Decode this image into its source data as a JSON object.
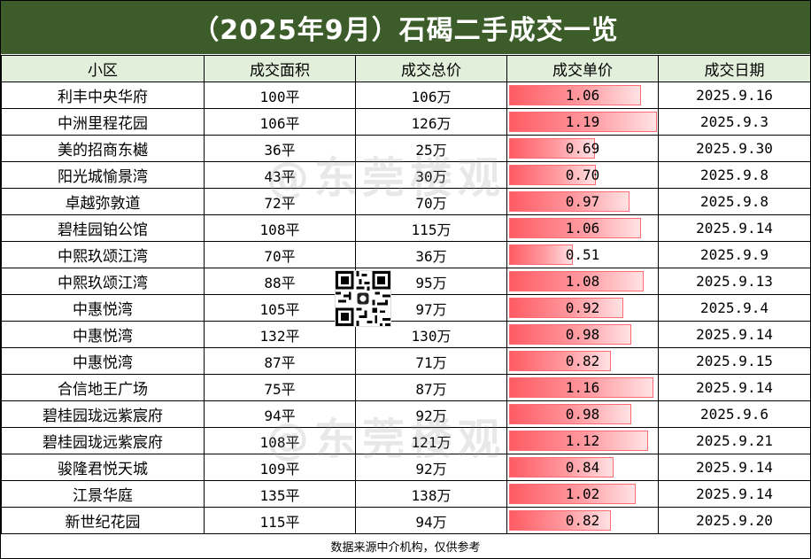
{
  "title": "（2025年9月）石碣二手成交一览",
  "columns": [
    "小区",
    "成交面积",
    "成交总价",
    "成交单价",
    "成交日期"
  ],
  "rows": [
    {
      "name": "利丰中央华府",
      "area": "100平",
      "total": "106万",
      "unit": "1.06",
      "date": "2025.9.16"
    },
    {
      "name": "中洲里程花园",
      "area": "106平",
      "total": "126万",
      "unit": "1.19",
      "date": "2025.9.3"
    },
    {
      "name": "美的招商东樾",
      "area": "36平",
      "total": "25万",
      "unit": "0.69",
      "date": "2025.9.30"
    },
    {
      "name": "阳光城愉景湾",
      "area": "43平",
      "total": "30万",
      "unit": "0.70",
      "date": "2025.9.8"
    },
    {
      "name": "卓越弥敦道",
      "area": "72平",
      "total": "70万",
      "unit": "0.97",
      "date": "2025.9.8"
    },
    {
      "name": "碧桂园铂公馆",
      "area": "108平",
      "total": "115万",
      "unit": "1.06",
      "date": "2025.9.14"
    },
    {
      "name": "中熙玖颂江湾",
      "area": "70平",
      "total": "36万",
      "unit": "0.51",
      "date": "2025.9.9"
    },
    {
      "name": "中熙玖颂江湾",
      "area": "88平",
      "total": "95万",
      "unit": "1.08",
      "date": "2025.9.13"
    },
    {
      "name": "中惠悦湾",
      "area": "105平",
      "total": "97万",
      "unit": "0.92",
      "date": "2025.9.4"
    },
    {
      "name": "中惠悦湾",
      "area": "132平",
      "total": "130万",
      "unit": "0.98",
      "date": "2025.9.14"
    },
    {
      "name": "中惠悦湾",
      "area": "87平",
      "total": "71万",
      "unit": "0.82",
      "date": "2025.9.15"
    },
    {
      "name": "合信地王广场",
      "area": "75平",
      "total": "87万",
      "unit": "1.16",
      "date": "2025.9.14"
    },
    {
      "name": "碧桂园珑远紫宸府",
      "area": "94平",
      "total": "92万",
      "unit": "0.98",
      "date": "2025.9.6"
    },
    {
      "name": "碧桂园珑远紫宸府",
      "area": "108平",
      "total": "121万",
      "unit": "1.12",
      "date": "2025.9.21"
    },
    {
      "name": "骏隆君悦天城",
      "area": "109平",
      "total": "92万",
      "unit": "0.84",
      "date": "2025.9.14"
    },
    {
      "name": "江景华庭",
      "area": "135平",
      "total": "138万",
      "unit": "1.02",
      "date": "2025.9.14"
    },
    {
      "name": "新世纪花园",
      "area": "115平",
      "total": "94万",
      "unit": "0.82",
      "date": "2025.9.20"
    }
  ],
  "unit_bar_max": 1.19,
  "footer": "数据来源中介机构，仅供参考",
  "watermark": "@东莞楼观",
  "colors": {
    "title_bg": "#3c5d2a",
    "header_bg": "#e2efda",
    "bar": "#ff5b63"
  }
}
